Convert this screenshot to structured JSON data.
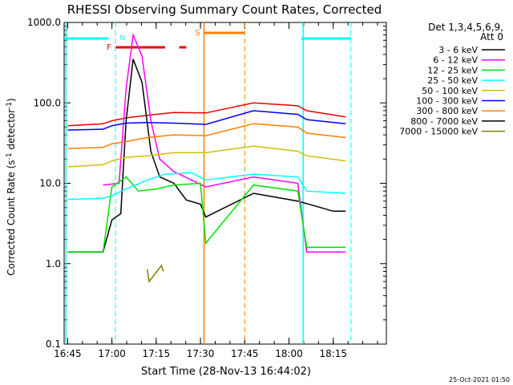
{
  "chart_data": {
    "type": "line",
    "title": "RHESSI Observing Summary Count Rates, Corrected",
    "xlabel": "Start Time (28-Nov-13 16:44:02)",
    "ylabel": "Corrected Count Rate (s",
    "ylabel_sup1": "-1",
    "ylabel_mid": " detector",
    "ylabel_sup2": "-1",
    "ylabel_end": ")",
    "y_scale": "log",
    "ylim": [
      0.1,
      1000
    ],
    "xlim_minutes": [
      16.73,
      18.55
    ],
    "y_ticks": [
      "1000.0",
      "100.0",
      "10.0",
      "1.0",
      "0.1"
    ],
    "x_ticks": [
      "16:45",
      "17:00",
      "17:15",
      "17:30",
      "17:45",
      "18:00",
      "18:15"
    ],
    "legend_title_1": "Det 1,3,4,5,6,9,",
    "legend_title_2": "Att 0",
    "series": [
      {
        "name": "3 - 6 keV",
        "color": "#000000",
        "points": [
          [
            16.75,
            1.4
          ],
          [
            16.95,
            1.4
          ],
          [
            17.0,
            3.5
          ],
          [
            17.05,
            4.2
          ],
          [
            17.08,
            60
          ],
          [
            17.12,
            350
          ],
          [
            17.17,
            180
          ],
          [
            17.22,
            25
          ],
          [
            17.27,
            12
          ],
          [
            17.35,
            10
          ],
          [
            17.42,
            6.2
          ],
          [
            17.5,
            5.5
          ],
          [
            17.53,
            3.8
          ],
          [
            17.8,
            7.5
          ],
          [
            18.05,
            6
          ],
          [
            18.25,
            4.5
          ],
          [
            18.32,
            4.5
          ]
        ]
      },
      {
        "name": "6 - 12 keV",
        "color": "#ff00ff",
        "points": [
          [
            16.95,
            9.5
          ],
          [
            17.04,
            10
          ],
          [
            17.08,
            150
          ],
          [
            17.12,
            700
          ],
          [
            17.17,
            380
          ],
          [
            17.22,
            60
          ],
          [
            17.27,
            20
          ],
          [
            17.35,
            14
          ],
          [
            17.45,
            11
          ],
          [
            17.53,
            9
          ],
          [
            17.8,
            12
          ],
          [
            18.05,
            10
          ],
          [
            18.1,
            1.4
          ],
          [
            18.32,
            1.4
          ]
        ]
      },
      {
        "name": "12 - 25 keV",
        "color": "#00e000",
        "points": [
          [
            16.75,
            1.4
          ],
          [
            16.95,
            1.4
          ],
          [
            17.0,
            9
          ],
          [
            17.08,
            12
          ],
          [
            17.15,
            8
          ],
          [
            17.25,
            8.5
          ],
          [
            17.35,
            9.5
          ],
          [
            17.5,
            10
          ],
          [
            17.53,
            1.8
          ],
          [
            17.8,
            9.5
          ],
          [
            18.05,
            8
          ],
          [
            18.1,
            1.6
          ],
          [
            18.32,
            1.6
          ]
        ]
      },
      {
        "name": "25 - 50 keV",
        "color": "#00ffff",
        "points": [
          [
            16.75,
            6.3
          ],
          [
            16.95,
            6.5
          ],
          [
            17.0,
            7
          ],
          [
            17.08,
            8.5
          ],
          [
            17.2,
            11
          ],
          [
            17.3,
            13
          ],
          [
            17.45,
            13.5
          ],
          [
            17.53,
            11
          ],
          [
            17.8,
            13
          ],
          [
            18.05,
            12
          ],
          [
            18.1,
            8
          ],
          [
            18.32,
            7.5
          ]
        ]
      },
      {
        "name": "50 - 100 keV",
        "color": "#d0c000",
        "points": [
          [
            16.75,
            16
          ],
          [
            16.95,
            17
          ],
          [
            17.0,
            19
          ],
          [
            17.08,
            21
          ],
          [
            17.2,
            22
          ],
          [
            17.35,
            24
          ],
          [
            17.53,
            24
          ],
          [
            17.8,
            29
          ],
          [
            18.05,
            25
          ],
          [
            18.1,
            22
          ],
          [
            18.32,
            19
          ]
        ]
      },
      {
        "name": "100 - 300 keV",
        "color": "#0000ff",
        "points": [
          [
            16.75,
            46
          ],
          [
            16.95,
            47
          ],
          [
            17.0,
            52
          ],
          [
            17.08,
            56
          ],
          [
            17.2,
            57
          ],
          [
            17.35,
            56
          ],
          [
            17.53,
            54
          ],
          [
            17.8,
            80
          ],
          [
            18.05,
            72
          ],
          [
            18.1,
            62
          ],
          [
            18.32,
            55
          ]
        ]
      },
      {
        "name": "300 - 800 keV",
        "color": "#ff8000",
        "points": [
          [
            16.75,
            27
          ],
          [
            16.95,
            28
          ],
          [
            17.0,
            31
          ],
          [
            17.08,
            33
          ],
          [
            17.2,
            37
          ],
          [
            17.35,
            40
          ],
          [
            17.53,
            39
          ],
          [
            17.8,
            55
          ],
          [
            18.05,
            50
          ],
          [
            18.1,
            42
          ],
          [
            18.32,
            37
          ]
        ]
      },
      {
        "name": "800 - 7000 keV",
        "color": "#000000",
        "points": []
      },
      {
        "name": "7000 - 15000 keV",
        "color": "#808000",
        "points": [
          [
            17.2,
            0.85
          ],
          [
            17.21,
            0.6
          ],
          [
            17.28,
            0.95
          ],
          [
            17.29,
            0.8
          ]
        ]
      }
    ],
    "red_series": {
      "color": "#ee0000",
      "points": [
        [
          16.75,
          52
        ],
        [
          16.95,
          55
        ],
        [
          17.0,
          60
        ],
        [
          17.08,
          65
        ],
        [
          17.2,
          70
        ],
        [
          17.35,
          76
        ],
        [
          17.53,
          75
        ],
        [
          17.8,
          100
        ],
        [
          18.05,
          92
        ],
        [
          18.1,
          80
        ],
        [
          18.32,
          67
        ]
      ]
    },
    "annotations": {
      "night_bars": [
        [
          16.73,
          16.98
        ],
        [
          18.07,
          18.35
        ]
      ],
      "night_label": "N",
      "flare_label": "F",
      "flare_bars": [
        [
          17.02,
          17.3
        ],
        [
          17.38,
          17.42
        ]
      ],
      "saa_label": "S",
      "saa_bar": [
        17.52,
        17.75
      ],
      "dashed_lines_cyan": [
        17.02,
        18.35
      ],
      "solid_lines_cyan": [
        16.74,
        18.08
      ],
      "solid_line_orange": 17.52,
      "dashed_line_orange": 17.75
    },
    "colors": {
      "night": "#00ffff",
      "flare": "#ee0000",
      "saa": "#ff8000"
    }
  },
  "footer": {
    "timestamp": "25-Oct-2021 01:50"
  }
}
